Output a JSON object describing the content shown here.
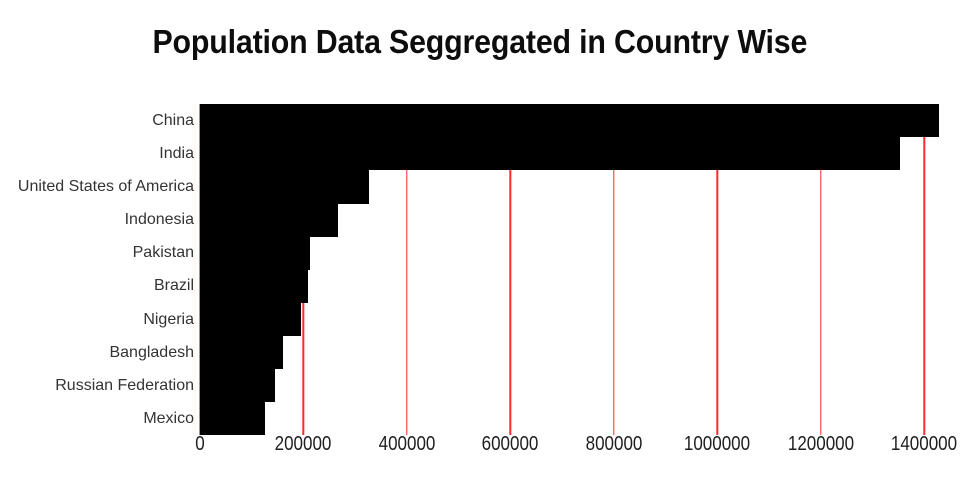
{
  "chart_data": {
    "type": "bar",
    "orientation": "horizontal",
    "title": "Population Data Seggregated in Country Wise",
    "categories": [
      "China",
      "India",
      "United States of America",
      "Indonesia",
      "Pakistan",
      "Brazil",
      "Nigeria",
      "Bangladesh",
      "Russian Federation",
      "Mexico"
    ],
    "values": [
      1427648,
      1352642,
      327096,
      267671,
      212228,
      209469,
      195875,
      161377,
      145734,
      126191
    ],
    "xticks": [
      0,
      200000,
      400000,
      600000,
      800000,
      1000000,
      1200000,
      1400000
    ],
    "xlim": [
      0,
      1440000
    ],
    "xlabel": "",
    "ylabel": "",
    "grid": true,
    "legend": false,
    "bar_color": "#000000",
    "gridline_color": "#ff2b2b",
    "title_color": "#0d0d0d",
    "category_label_color": "#333333",
    "tick_label_color": "#1f1f1f",
    "background_color": "#ffffff"
  }
}
